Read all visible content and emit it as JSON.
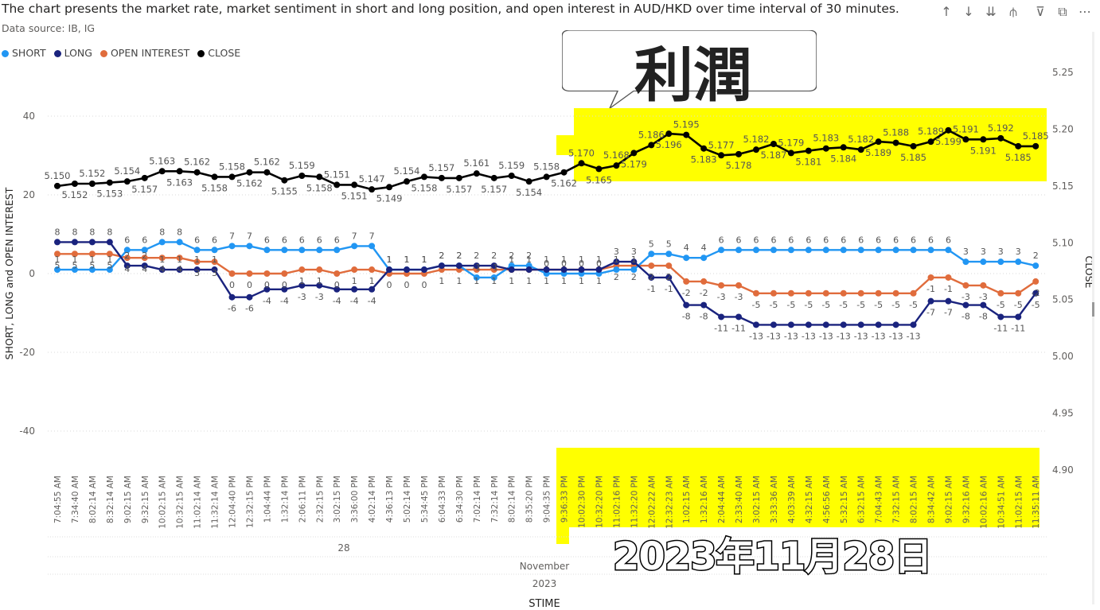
{
  "header": {
    "title": "The chart presents the market rate, market sentiment in short and long position, and open interest in AUD/HKD over time interval of 30 minutes.",
    "source": "Data source: IB, IG"
  },
  "toolbar": {
    "icons": [
      "arrow-up-icon",
      "arrow-down-icon",
      "double-arrow-down-icon",
      "expand-hierarchy-icon",
      "filter-icon",
      "focus-mode-icon",
      "more-options-icon"
    ]
  },
  "legend": {
    "items": [
      {
        "label": "SHORT",
        "color": "#2196f3"
      },
      {
        "label": "LONG",
        "color": "#1a237e"
      },
      {
        "label": "OPEN INTEREST",
        "color": "#e06c3c"
      },
      {
        "label": "CLOSE",
        "color": "#000000"
      }
    ]
  },
  "overlay": {
    "callout_text": "利潤",
    "date_stamp": "2023年11月28日",
    "highlight_color": "#ffff00"
  },
  "chart_data": {
    "type": "line",
    "title": "The chart presents the market rate, market sentiment in short and long position, and open interest in AUD/HKD over time interval of 30 minutes.",
    "xlabel": "STIME",
    "ylabel": "SHORT, LONG and OPEN INTEREST",
    "y2label": "CLOSE",
    "ylim": [
      -50,
      40
    ],
    "y2lim": [
      4.9,
      5.25
    ],
    "yticks": [
      "40",
      "20",
      "0",
      "-20",
      "-40"
    ],
    "y2ticks": [
      "5.25",
      "5.20",
      "5.15",
      "5.10",
      "5.05",
      "5.00",
      "4.95",
      "4.90"
    ],
    "hierarchy": {
      "day": "28",
      "month": "November",
      "year": "2023"
    },
    "categories": [
      "7:04:55 AM",
      "7:34:40 AM",
      "8:02:14 AM",
      "8:32:14 AM",
      "9:02:15 AM",
      "9:32:15 AM",
      "10:02:15 AM",
      "10:32:15 AM",
      "11:02:14 AM",
      "11:32:14 AM",
      "12:04:40 PM",
      "12:32:15 PM",
      "1:04:44 PM",
      "1:32:14 PM",
      "2:06:11 PM",
      "2:32:15 PM",
      "3:02:15 PM",
      "3:36:00 PM",
      "4:02:14 PM",
      "4:36:13 PM",
      "5:02:14 PM",
      "5:34:45 PM",
      "6:04:33 PM",
      "6:34:30 PM",
      "7:02:14 PM",
      "7:32:14 PM",
      "8:02:14 PM",
      "8:35:20 PM",
      "9:04:35 PM",
      "9:36:33 PM",
      "10:02:30 PM",
      "10:32:20 PM",
      "11:02:16 PM",
      "11:32:20 PM",
      "12:02:22 AM",
      "12:32:23 AM",
      "1:02:15 AM",
      "1:32:16 AM",
      "2:04:44 AM",
      "2:33:40 AM",
      "3:02:15 AM",
      "3:33:36 AM",
      "4:03:39 AM",
      "4:32:15 AM",
      "4:56:56 AM",
      "5:32:15 AM",
      "6:32:15 AM",
      "7:04:43 AM",
      "7:32:15 AM",
      "8:02:15 AM",
      "8:34:42 AM",
      "9:02:15 AM",
      "9:32:16 AM",
      "10:02:16 AM",
      "10:34:51 AM",
      "11:02:15 AM",
      "11:35:11 AM"
    ],
    "series": [
      {
        "name": "SHORT",
        "axis": "left",
        "color": "#2196f3",
        "values": [
          1,
          1,
          1,
          1,
          6,
          6,
          8,
          8,
          6,
          6,
          7,
          7,
          6,
          6,
          6,
          6,
          6,
          7,
          7,
          1,
          1,
          1,
          2,
          2,
          -1,
          -1,
          2,
          2,
          0,
          0,
          0,
          0,
          1,
          1,
          5,
          5,
          4,
          4,
          6,
          6,
          6,
          6,
          6,
          6,
          6,
          6,
          6,
          6,
          6,
          6,
          6,
          6,
          3,
          3,
          3,
          3,
          2
        ]
      },
      {
        "name": "LONG",
        "axis": "left",
        "color": "#1a237e",
        "values": [
          8,
          8,
          8,
          8,
          2,
          2,
          1,
          1,
          1,
          1,
          -6,
          -6,
          -4,
          -4,
          -3,
          -3,
          -4,
          -4,
          -4,
          1,
          1,
          1,
          2,
          2,
          2,
          2,
          1,
          1,
          1,
          1,
          1,
          1,
          3,
          3,
          -1,
          -1,
          -8,
          -8,
          -11,
          -11,
          -13,
          -13,
          -13,
          -13,
          -13,
          -13,
          -13,
          -13,
          -13,
          -13,
          -7,
          -7,
          -8,
          -8,
          -11,
          -11,
          -5
        ]
      },
      {
        "name": "OPEN INTEREST",
        "axis": "left",
        "color": "#e06c3c",
        "values": [
          5,
          5,
          5,
          5,
          4,
          4,
          4,
          4,
          3,
          3,
          0,
          0,
          0,
          0,
          1,
          1,
          0,
          1,
          1,
          0,
          0,
          0,
          1,
          1,
          1,
          1,
          1,
          1,
          1,
          1,
          1,
          1,
          2,
          2,
          2,
          2,
          -2,
          -2,
          -3,
          -3,
          -5,
          -5,
          -5,
          -5,
          -5,
          -5,
          -5,
          -5,
          -5,
          -5,
          -1,
          -1,
          -3,
          -3,
          -5,
          -5,
          -2
        ]
      },
      {
        "name": "CLOSE",
        "axis": "right",
        "color": "#000000",
        "values": [
          5.15,
          5.152,
          5.152,
          5.153,
          5.154,
          5.157,
          5.163,
          5.163,
          5.162,
          5.158,
          5.158,
          5.162,
          5.162,
          5.155,
          5.159,
          5.158,
          5.151,
          5.151,
          5.147,
          5.149,
          5.154,
          5.158,
          5.157,
          5.157,
          5.161,
          5.157,
          5.159,
          5.154,
          5.158,
          5.162,
          5.17,
          5.165,
          5.168,
          5.179,
          5.186,
          5.196,
          5.195,
          5.183,
          5.177,
          5.178,
          5.182,
          5.187,
          5.179,
          5.181,
          5.183,
          5.184,
          5.182,
          5.189,
          5.188,
          5.185,
          5.189,
          5.199,
          5.191,
          5.191,
          5.192,
          5.185,
          5.185
        ]
      }
    ]
  }
}
